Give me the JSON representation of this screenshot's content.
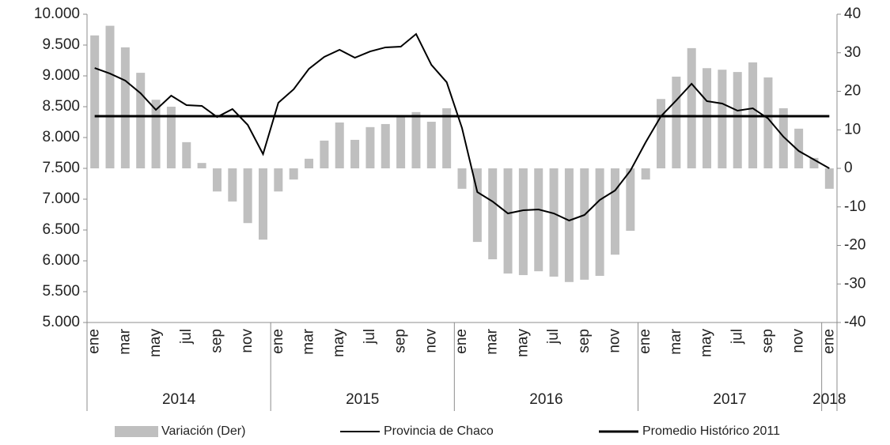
{
  "chart_data": {
    "type": "bar_line",
    "categories": [
      "ene",
      null,
      "mar",
      null,
      "may",
      null,
      "jul",
      null,
      "sep",
      null,
      "nov",
      null,
      "ene",
      null,
      "mar",
      null,
      "may",
      null,
      "jul",
      null,
      "sep",
      null,
      "nov",
      null,
      "ene",
      null,
      "mar",
      null,
      "may",
      null,
      "jul",
      null,
      "sep",
      null,
      "nov",
      null,
      "ene",
      null,
      "mar",
      null,
      "may",
      null,
      "jul",
      null,
      "sep",
      null,
      "nov",
      null,
      "ene"
    ],
    "x_groups": [
      "2014",
      "2015",
      "2016",
      "2017",
      "2018"
    ],
    "series": [
      {
        "name": "Variación (Der)",
        "type": "bar",
        "axis": "y2",
        "color": "#bfbfbf",
        "values": [
          34.5,
          37,
          31.4,
          24.8,
          17.8,
          16,
          6.8,
          1.4,
          -6,
          -8.6,
          -14.2,
          -18.5,
          -6,
          -2.9,
          2.5,
          7.2,
          11.9,
          7.4,
          10.7,
          11.5,
          13.5,
          14.6,
          12.1,
          15.6,
          -5.3,
          -19.1,
          -23.6,
          -27.3,
          -27.7,
          -26.7,
          -28.1,
          -29.5,
          -28.9,
          -27.9,
          -22.4,
          -16.2,
          -2.9,
          18,
          23.8,
          31.2,
          26,
          25.6,
          25,
          27.5,
          23.6,
          15.6,
          10.3,
          2.7,
          -5.3
        ]
      },
      {
        "name": "Provincia de Chaco",
        "type": "line",
        "color": "#000000",
        "values": [
          9128,
          9038,
          8923,
          8718,
          8449,
          8679,
          8526,
          8513,
          8333,
          8462,
          8205,
          7731,
          8564,
          8782,
          9115,
          9308,
          9423,
          9295,
          9397,
          9462,
          9474,
          9679,
          9179,
          8897,
          8154,
          7115,
          6962,
          6769,
          6821,
          6833,
          6769,
          6654,
          6744,
          6987,
          7141,
          7462,
          7923,
          8346,
          8603,
          8872,
          8590,
          8551,
          8436,
          8474,
          8308,
          8013,
          7782,
          7641,
          7500
        ]
      },
      {
        "name": "Promedio Histórico 2011",
        "type": "line",
        "color": "#000000",
        "values": [
          8346,
          8346,
          8346,
          8346,
          8346,
          8346,
          8346,
          8346,
          8346,
          8346,
          8346,
          8346,
          8346,
          8346,
          8346,
          8346,
          8346,
          8346,
          8346,
          8346,
          8346,
          8346,
          8346,
          8346,
          8346,
          8346,
          8346,
          8346,
          8346,
          8346,
          8346,
          8346,
          8346,
          8346,
          8346,
          8346,
          8346,
          8346,
          8346,
          8346,
          8346,
          8346,
          8346,
          8346,
          8346,
          8346,
          8346,
          8346,
          8346
        ]
      }
    ],
    "ylim": [
      5000,
      10000
    ],
    "yticks": [
      {
        "value": 5000,
        "label": "5.000"
      },
      {
        "value": 5500,
        "label": "5.500"
      },
      {
        "value": 6000,
        "label": "6.000"
      },
      {
        "value": 6500,
        "label": "6.500"
      },
      {
        "value": 7000,
        "label": "7.000"
      },
      {
        "value": 7500,
        "label": "7.500"
      },
      {
        "value": 8000,
        "label": "8.000"
      },
      {
        "value": 8500,
        "label": "8.500"
      },
      {
        "value": 9000,
        "label": "9.000"
      },
      {
        "value": 9500,
        "label": "9.500"
      },
      {
        "value": 10000,
        "label": "10.000"
      }
    ],
    "y2lim": [
      -40,
      40
    ],
    "y2ticks": [
      -40,
      -30,
      -20,
      -10,
      0,
      10,
      20,
      30,
      40
    ],
    "grid": false
  }
}
